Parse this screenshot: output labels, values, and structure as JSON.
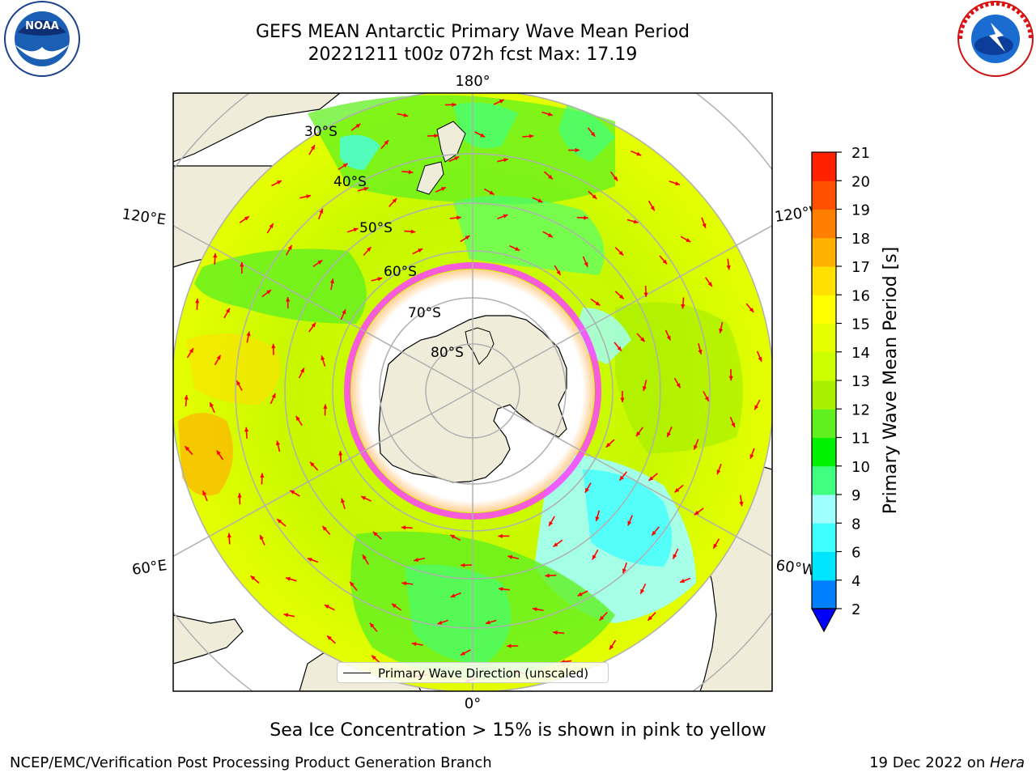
{
  "title": {
    "line1": "GEFS MEAN Antarctic Primary Wave Mean Period",
    "line2": "20221211 t00z 072h fcst   Max: 17.19"
  },
  "map": {
    "projection": "south-polar-stereographic",
    "lon_labels": {
      "top": "180°",
      "bottom": "0°",
      "upper_left": "120°E",
      "upper_right": "120°W",
      "lower_left": "60°E",
      "lower_right": "60°W"
    },
    "lat_labels": [
      "30°S",
      "40°S",
      "50°S",
      "60°S",
      "70°S",
      "80°S"
    ],
    "legend_label": "Primary Wave Direction (unscaled)",
    "colors": {
      "land": "#efedda",
      "ice": "#ffffff",
      "ice_edge": "#ff40ff",
      "ice_fringe": "#ffb04a",
      "arrow": "#ff0000",
      "grid": "#b0b0b0"
    }
  },
  "colorbar": {
    "label": "Primary Wave Mean Period [s]",
    "ticks": [
      "2",
      "4",
      "6",
      "8",
      "9",
      "10",
      "11",
      "12",
      "13",
      "14",
      "15",
      "16",
      "17",
      "18",
      "19",
      "20",
      "21"
    ],
    "colors": [
      "#0080ff",
      "#00e5ff",
      "#40ffff",
      "#a0ffff",
      "#40ff80",
      "#00f000",
      "#60f020",
      "#a8f000",
      "#ccff00",
      "#e6ff00",
      "#ffff00",
      "#ffe000",
      "#ffb000",
      "#ff8000",
      "#ff5000",
      "#ff2000"
    ],
    "extend_color": "#0000ff"
  },
  "note": "Sea Ice Concentration > 15% is shown in pink to yellow",
  "footer": {
    "left": "NCEP/EMC/Verification Post Processing Product Generation Branch",
    "right_date": "19 Dec 2022 on ",
    "right_host": "Hera"
  },
  "logos": {
    "left": "NOAA",
    "right": "NATIONAL WEATHER SERVICE"
  }
}
